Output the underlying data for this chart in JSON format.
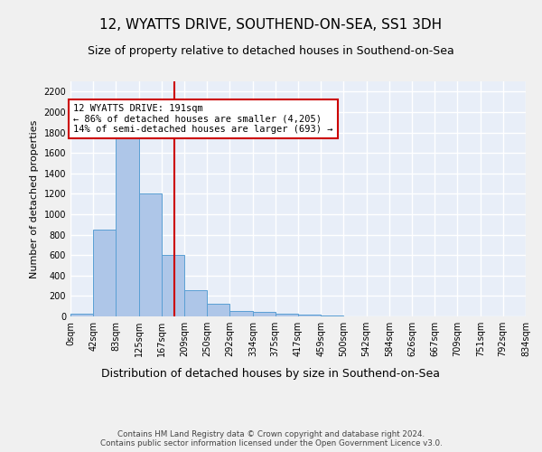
{
  "title": "12, WYATTS DRIVE, SOUTHEND-ON-SEA, SS1 3DH",
  "subtitle": "Size of property relative to detached houses in Southend-on-Sea",
  "xlabel": "Distribution of detached houses by size in Southend-on-Sea",
  "ylabel": "Number of detached properties",
  "bin_edges": [
    0,
    42,
    83,
    125,
    167,
    209,
    250,
    292,
    334,
    375,
    417,
    459,
    500,
    542,
    584,
    626,
    667,
    709,
    751,
    792,
    834
  ],
  "bar_heights": [
    25,
    850,
    1800,
    1200,
    600,
    260,
    125,
    50,
    45,
    30,
    15,
    5,
    0,
    0,
    0,
    0,
    0,
    0,
    0,
    0
  ],
  "bar_color": "#aec6e8",
  "bar_edge_color": "#5a9fd4",
  "property_size": 191,
  "red_line_color": "#cc0000",
  "annotation_text": "12 WYATTS DRIVE: 191sqm\n← 86% of detached houses are smaller (4,205)\n14% of semi-detached houses are larger (693) →",
  "annotation_box_color": "#ffffff",
  "annotation_box_edge_color": "#cc0000",
  "ylim": [
    0,
    2300
  ],
  "yticks": [
    0,
    200,
    400,
    600,
    800,
    1000,
    1200,
    1400,
    1600,
    1800,
    2000,
    2200
  ],
  "footer_text": "Contains HM Land Registry data © Crown copyright and database right 2024.\nContains public sector information licensed under the Open Government Licence v3.0.",
  "background_color": "#e8eef8",
  "grid_color": "#ffffff",
  "fig_background": "#f0f0f0",
  "title_fontsize": 11,
  "subtitle_fontsize": 9,
  "tick_label_fontsize": 7,
  "ylabel_fontsize": 8,
  "xlabel_fontsize": 9,
  "annotation_fontsize": 7.5
}
